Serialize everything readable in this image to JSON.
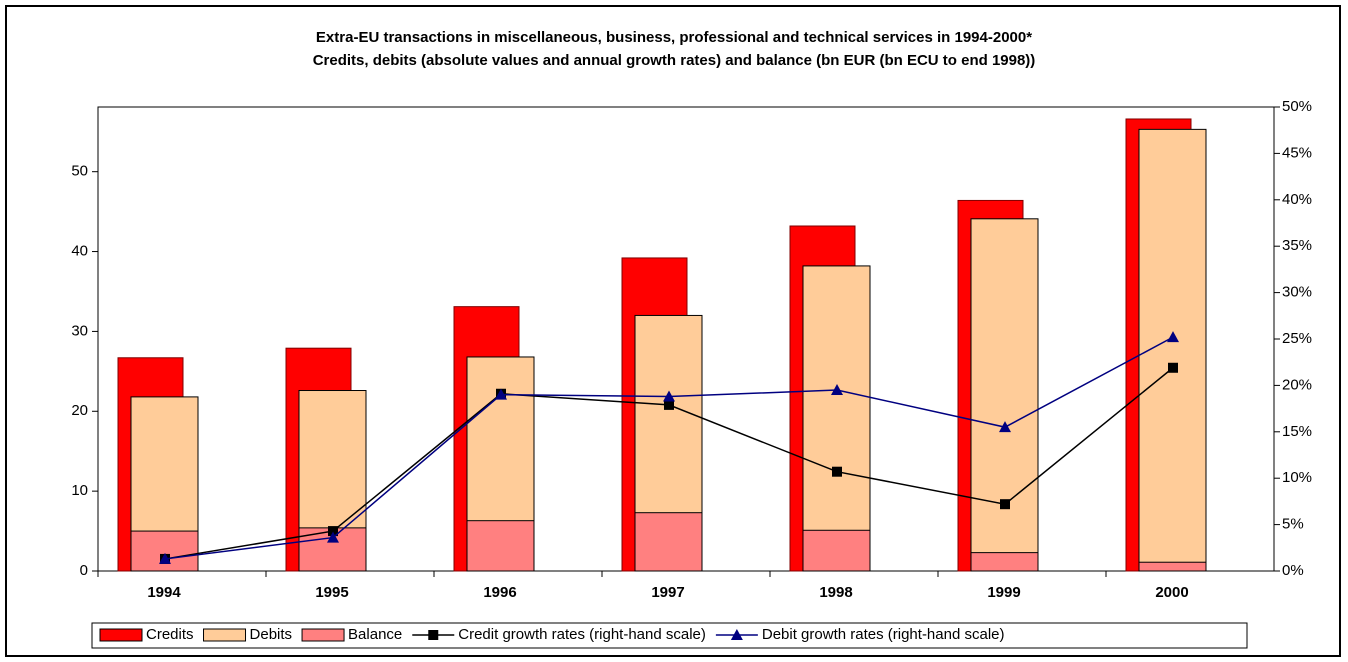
{
  "chart_data": {
    "type": "bar",
    "title": "Extra-EU transactions in miscellaneous, business, professional and technical services in 1994-2000*",
    "subtitle": "Credits, debits (absolute values and annual growth rates) and balance (bn EUR (bn ECU to end 1998))",
    "categories": [
      "1994",
      "1995",
      "1996",
      "1997",
      "1998",
      "1999",
      "2000"
    ],
    "series": [
      {
        "name": "Credits",
        "type": "bar",
        "color": "#ff0000",
        "values": [
          26.7,
          27.9,
          33.1,
          39.2,
          43.2,
          46.4,
          56.6
        ]
      },
      {
        "name": "Debits",
        "type": "bar",
        "color": "#ffcc99",
        "values": [
          21.8,
          22.6,
          26.8,
          32.0,
          38.2,
          44.1,
          55.3
        ]
      },
      {
        "name": "Balance",
        "type": "bar",
        "color": "#ff8080",
        "values": [
          5.0,
          5.4,
          6.3,
          7.3,
          5.1,
          2.3,
          1.1
        ]
      },
      {
        "name": "Credit growth rates (right-hand scale)",
        "type": "line",
        "axis": "y2",
        "marker": "square",
        "color": "#000000",
        "values": [
          1.3,
          4.3,
          19.1,
          17.9,
          10.7,
          7.2,
          21.9
        ]
      },
      {
        "name": "Debit growth rates (right-hand scale)",
        "type": "line",
        "axis": "y2",
        "marker": "triangle",
        "color": "#000080",
        "values": [
          1.3,
          3.6,
          19.0,
          18.8,
          19.5,
          15.5,
          25.2
        ]
      }
    ],
    "ylim": [
      0,
      58.1
    ],
    "yticks": [
      0,
      10,
      20,
      30,
      40,
      50
    ],
    "y2lim": [
      0,
      50
    ],
    "y2ticks": [
      {
        "value": 0,
        "label": "0%"
      },
      {
        "value": 5,
        "label": "5%"
      },
      {
        "value": 10,
        "label": "10%"
      },
      {
        "value": 15,
        "label": "15%"
      },
      {
        "value": 20,
        "label": "20%"
      },
      {
        "value": 25,
        "label": "25%"
      },
      {
        "value": 30,
        "label": "30%"
      },
      {
        "value": 35,
        "label": "35%"
      },
      {
        "value": 40,
        "label": "40%"
      },
      {
        "value": 45,
        "label": "45%"
      },
      {
        "value": 50,
        "label": "50%"
      }
    ],
    "legend": "bottom"
  }
}
